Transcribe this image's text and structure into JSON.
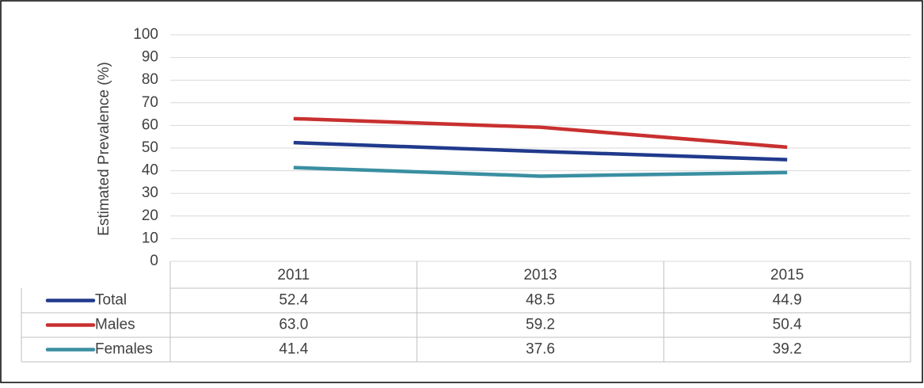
{
  "chart_data": {
    "type": "line",
    "y_label": "Estimated Prevalence (%)",
    "categories": [
      "2011",
      "2013",
      "2015"
    ],
    "series": [
      {
        "name": "Total",
        "color": "#203a8c",
        "values": [
          52.4,
          48.5,
          44.9
        ]
      },
      {
        "name": "Males",
        "color": "#c8302f",
        "values": [
          63.0,
          59.2,
          50.4
        ],
        "value_labels": [
          "63.0",
          "59.2",
          "50.4"
        ]
      },
      {
        "name": "Females",
        "color": "#3a8fa2",
        "values": [
          41.4,
          37.6,
          39.2
        ]
      }
    ],
    "ylim": [
      0,
      100
    ],
    "yticks": [
      0,
      10,
      20,
      30,
      40,
      50,
      60,
      70,
      80,
      90,
      100
    ],
    "grid": true,
    "data_table": true
  }
}
